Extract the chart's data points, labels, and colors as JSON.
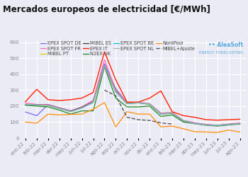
{
  "title": "Mercados europeos de electricidad [€/MWh]",
  "x_labels": [
    "ene-22",
    "feb-22",
    "mar-22",
    "abr-22",
    "may-22",
    "jun-22",
    "jul-22",
    "ago-22",
    "sep-22",
    "oct-22",
    "nov-22",
    "dic-22",
    "ene-23",
    "feb-23",
    "mar-23",
    "abr-23",
    "may-23",
    "jun-23",
    "jul-23",
    "ago-23"
  ],
  "series": {
    "EPEX SPOT DE": {
      "color": "#7b68ee",
      "style": "-",
      "lw": 0.9,
      "values": [
        163,
        140,
        210,
        190,
        170,
        195,
        235,
        465,
        310,
        220,
        220,
        215,
        155,
        155,
        110,
        95,
        85,
        80,
        85,
        90
      ]
    },
    "EPEX SPOT FR": {
      "color": "#ff69b4",
      "style": "-",
      "lw": 0.9,
      "values": [
        220,
        210,
        210,
        190,
        170,
        195,
        235,
        490,
        300,
        220,
        225,
        215,
        155,
        160,
        110,
        95,
        85,
        80,
        88,
        95
      ]
    },
    "MIBEL PT": {
      "color": "#d4d400",
      "style": "-",
      "lw": 0.9,
      "values": [
        208,
        205,
        205,
        185,
        168,
        190,
        225,
        450,
        290,
        215,
        220,
        210,
        150,
        155,
        107,
        90,
        82,
        78,
        85,
        90
      ]
    },
    "MIBEL ES": {
      "color": "#333333",
      "style": "-",
      "lw": 0.9,
      "values": [
        210,
        207,
        207,
        186,
        168,
        192,
        226,
        452,
        292,
        216,
        221,
        212,
        152,
        156,
        108,
        91,
        83,
        79,
        86,
        91
      ]
    },
    "EPEX IT": {
      "color": "#ff2200",
      "style": "-",
      "lw": 1.0,
      "values": [
        228,
        305,
        240,
        235,
        240,
        250,
        285,
        540,
        365,
        225,
        225,
        250,
        295,
        165,
        140,
        130,
        115,
        112,
        115,
        118
      ]
    },
    "N2EX UK": {
      "color": "#228b22",
      "style": "-",
      "lw": 0.9,
      "values": [
        205,
        200,
        195,
        175,
        150,
        170,
        170,
        445,
        250,
        195,
        195,
        200,
        135,
        145,
        100,
        90,
        80,
        75,
        82,
        88
      ]
    },
    "EPEX SPOT BE": {
      "color": "#00bcd4",
      "style": "-",
      "lw": 0.9,
      "values": [
        210,
        205,
        205,
        185,
        165,
        188,
        222,
        450,
        288,
        215,
        220,
        212,
        150,
        155,
        108,
        90,
        82,
        78,
        85,
        90
      ]
    },
    "EPEX SPOT NL": {
      "color": "#b0b0b0",
      "style": "-",
      "lw": 0.9,
      "values": [
        212,
        207,
        206,
        186,
        166,
        189,
        224,
        452,
        290,
        216,
        221,
        213,
        151,
        156,
        109,
        91,
        83,
        79,
        86,
        91
      ]
    },
    "NordPool": {
      "color": "#ff8c00",
      "style": "-",
      "lw": 0.9,
      "values": [
        100,
        93,
        150,
        145,
        148,
        150,
        180,
        222,
        70,
        165,
        150,
        150,
        70,
        75,
        58,
        40,
        38,
        35,
        50,
        38
      ]
    },
    "MIBEL+Ajuste": {
      "color": "#555555",
      "style": "--",
      "lw": 1.0,
      "values": [
        null,
        null,
        null,
        null,
        null,
        null,
        null,
        300,
        265,
        130,
        115,
        110,
        95,
        88,
        null,
        null,
        null,
        null,
        null,
        null
      ]
    }
  },
  "ylim": [
    0,
    620
  ],
  "yticks": [
    0,
    100,
    200,
    300,
    400,
    500,
    600
  ],
  "bg_color": "#ebebf5",
  "grid_color": "#ffffff",
  "watermark_line1": "•• AleaSoft",
  "watermark_line2": "ENERGY FORECASTING",
  "watermark_color": "#5aabda",
  "title_fontsize": 8.5,
  "tick_fontsize": 5.0,
  "legend_fontsize": 4.8
}
